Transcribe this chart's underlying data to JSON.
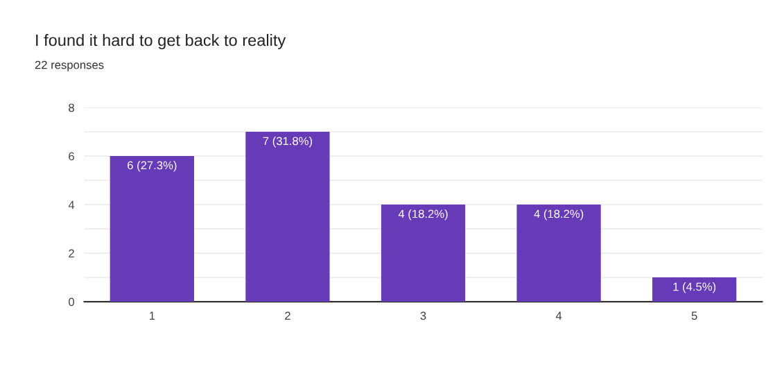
{
  "chart_data": {
    "type": "bar",
    "title": "I found it hard to get back to reality",
    "subtitle": "22 responses",
    "categories": [
      "1",
      "2",
      "3",
      "4",
      "5"
    ],
    "values": [
      6,
      7,
      4,
      4,
      1
    ],
    "value_labels": [
      "6 (27.3%)",
      "7 (31.8%)",
      "4 (18.2%)",
      "4 (18.2%)",
      "1 (4.5%)"
    ],
    "color": "#673ab7",
    "ylim": [
      0,
      8
    ],
    "yticks": [
      0,
      {
        "value": 1,
        "label": null
      },
      2,
      {
        "value": 3,
        "label": null
      },
      4,
      {
        "value": 5,
        "label": null
      },
      6,
      {
        "value": 7,
        "label": null
      },
      8
    ],
    "grid": "y",
    "legend": false
  }
}
